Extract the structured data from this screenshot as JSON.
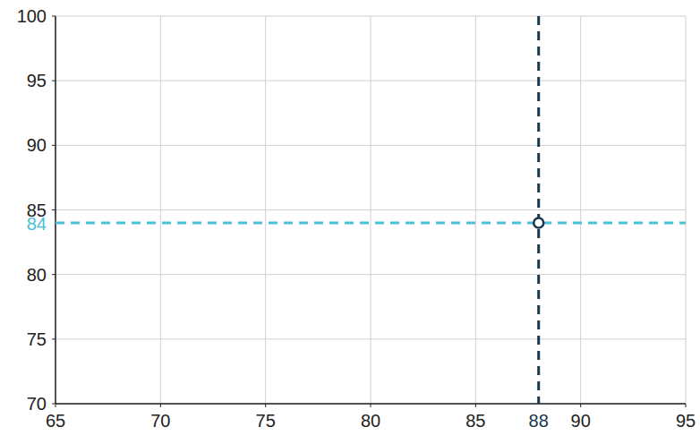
{
  "chart_data": {
    "type": "scatter",
    "x": [
      88
    ],
    "values": [
      84
    ],
    "color": "#17384d",
    "xlim": [
      65,
      95
    ],
    "xticks": [
      65,
      70,
      75,
      80,
      85,
      90,
      95
    ],
    "ylim": [
      70,
      100
    ],
    "yticks": [
      70,
      75,
      80,
      85,
      90,
      95,
      100
    ],
    "grid": true
  }
}
